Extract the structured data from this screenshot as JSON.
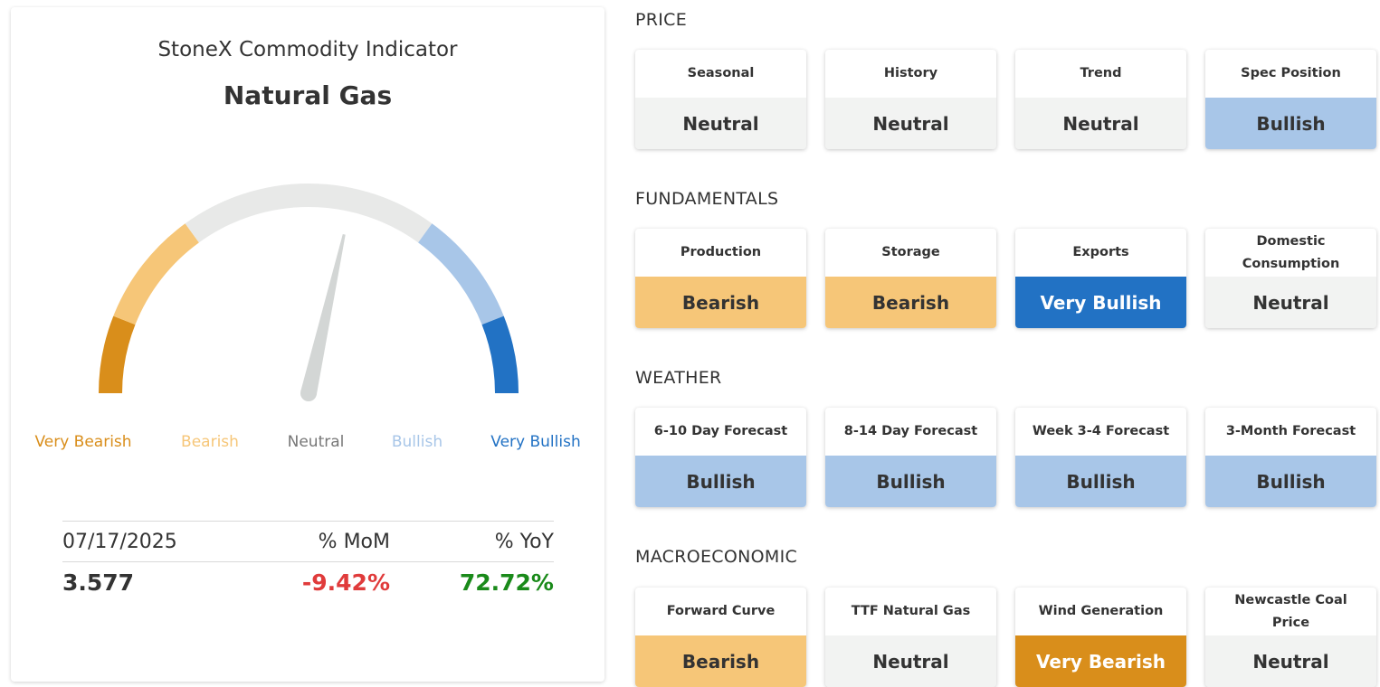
{
  "indicator": {
    "subtitle": "StoneX Commodity Indicator",
    "title": "Natural Gas"
  },
  "gauge": {
    "needle_value": 0.57,
    "scale": [
      "Very Bearish",
      "Bearish",
      "Neutral",
      "Bullish",
      "Very Bullish"
    ],
    "segments": [
      {
        "name": "Very Bearish",
        "from": 0.0,
        "to": 0.12,
        "color": "#d98e1b"
      },
      {
        "name": "Bearish",
        "from": 0.12,
        "to": 0.3,
        "color": "#f6c678"
      },
      {
        "name": "Neutral",
        "from": 0.3,
        "to": 0.7,
        "color": "#e8e9e8"
      },
      {
        "name": "Bullish",
        "from": 0.7,
        "to": 0.88,
        "color": "#a8c6e8"
      },
      {
        "name": "Very Bullish",
        "from": 0.88,
        "to": 1.0,
        "color": "#2272c4"
      }
    ],
    "label_colors": [
      "#d98e1b",
      "#f6c678",
      "#777777",
      "#a8c6e8",
      "#2272c4"
    ],
    "needle_color": "#d3d6d5"
  },
  "stats": {
    "date_label": "07/17/2025",
    "mom_label": "% MoM",
    "yoy_label": "% YoY",
    "price": "3.577",
    "mom": "-9.42%",
    "yoy": "72.72%",
    "mom_color": "#e03b3b",
    "yoy_color": "#1a8a1a"
  },
  "sections": [
    {
      "title": "PRICE",
      "factors": [
        {
          "name": "Seasonal",
          "status": "Neutral",
          "level": "neutral"
        },
        {
          "name": "History",
          "status": "Neutral",
          "level": "neutral"
        },
        {
          "name": "Trend",
          "status": "Neutral",
          "level": "neutral"
        },
        {
          "name": "Spec Position",
          "status": "Bullish",
          "level": "bullish"
        }
      ]
    },
    {
      "title": "FUNDAMENTALS",
      "factors": [
        {
          "name": "Production",
          "status": "Bearish",
          "level": "bearish"
        },
        {
          "name": "Storage",
          "status": "Bearish",
          "level": "bearish"
        },
        {
          "name": "Exports",
          "status": "Very Bullish",
          "level": "very-bullish"
        },
        {
          "name": "Domestic Consumption",
          "status": "Neutral",
          "level": "neutral"
        }
      ]
    },
    {
      "title": "WEATHER",
      "factors": [
        {
          "name": "6-10 Day Forecast",
          "status": "Bullish",
          "level": "bullish"
        },
        {
          "name": "8-14 Day Forecast",
          "status": "Bullish",
          "level": "bullish"
        },
        {
          "name": "Week 3-4 Forecast",
          "status": "Bullish",
          "level": "bullish"
        },
        {
          "name": "3-Month Forecast",
          "status": "Bullish",
          "level": "bullish"
        }
      ]
    },
    {
      "title": "MACROECONOMIC",
      "factors": [
        {
          "name": "Forward Curve",
          "status": "Bearish",
          "level": "bearish"
        },
        {
          "name": "TTF Natural Gas",
          "status": "Neutral",
          "level": "neutral"
        },
        {
          "name": "Wind Generation",
          "status": "Very Bearish",
          "level": "very-bearish"
        },
        {
          "name": "Newcastle Coal Price",
          "status": "Neutral",
          "level": "neutral"
        }
      ]
    }
  ]
}
